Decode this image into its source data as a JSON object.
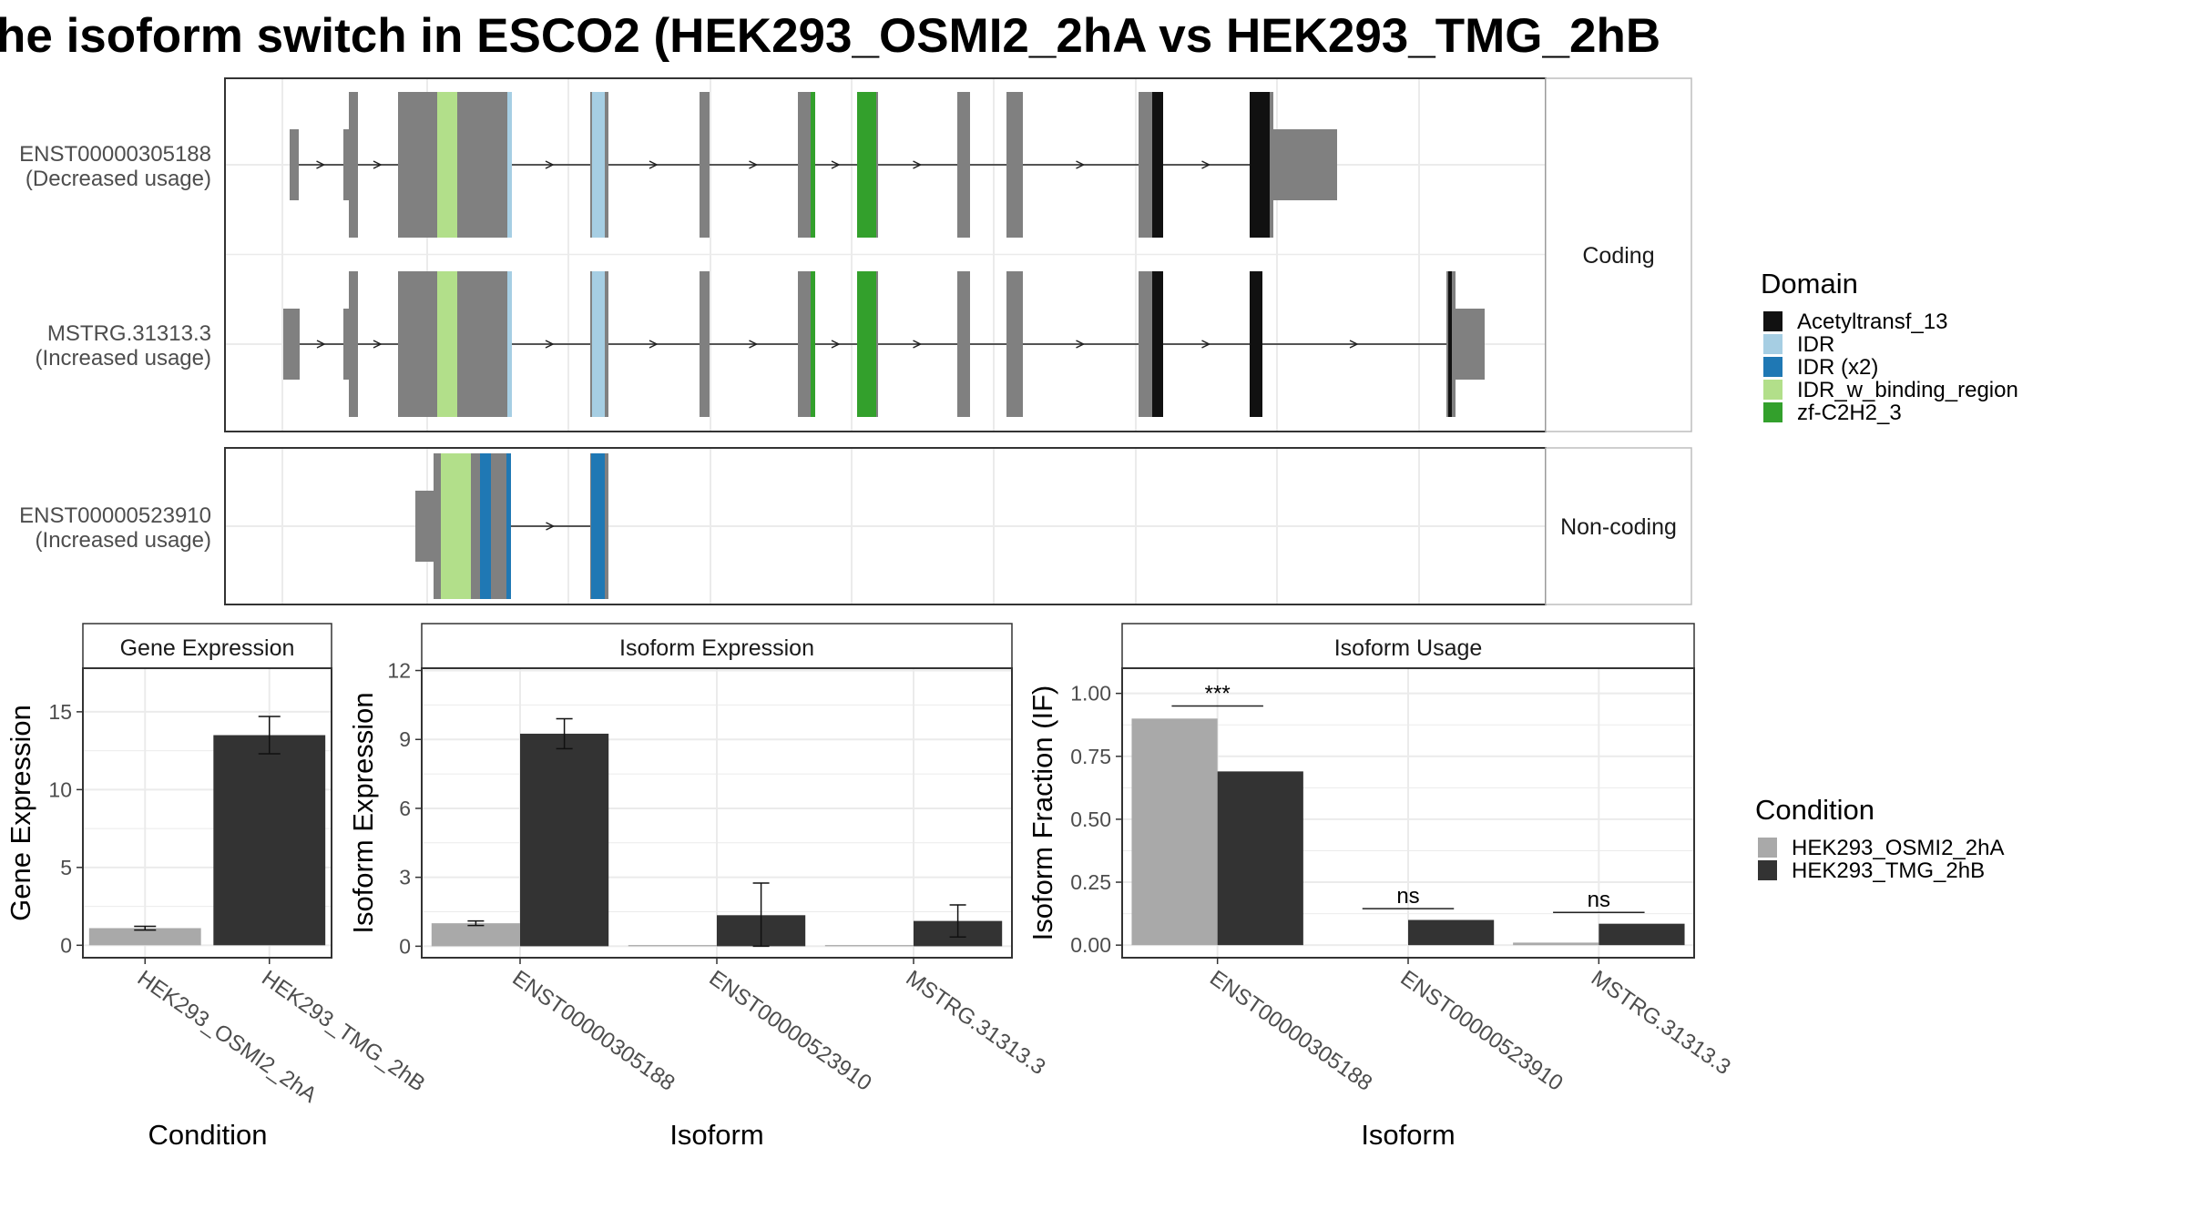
{
  "title": "he isoform switch in ESCO2 (HEK293_OSMI2_2hA vs HEK293_TMG_2hB",
  "colors": {
    "exon": "#808080",
    "panel_border": "#333333",
    "grid": "#ebebeb",
    "cond_a": "#a9a9a9",
    "cond_b": "#333333"
  },
  "structure": {
    "panels": [
      {
        "strip": "Coding",
        "isoforms": [
          {
            "id": "ENST00000305188",
            "usage": "(Decreased usage)"
          },
          {
            "id": "MSTRG.31313.3",
            "usage": "(Increased usage)"
          }
        ]
      },
      {
        "strip": "Non-coding",
        "isoforms": [
          {
            "id": "ENST00000523910",
            "usage": "(Increased usage)"
          }
        ]
      }
    ],
    "domain_legend": {
      "title": "Domain",
      "items": [
        {
          "label": "Acetyltransf_13",
          "color": "#111111"
        },
        {
          "label": "IDR",
          "color": "#a6cee3"
        },
        {
          "label": "IDR (x2)",
          "color": "#1f78b4"
        },
        {
          "label": "IDR_w_binding_region",
          "color": "#b2df8a"
        },
        {
          "label": "zf-C2H2_3",
          "color": "#33a02c"
        }
      ]
    }
  },
  "condition_legend": {
    "title": "Condition",
    "items": [
      {
        "label": "HEK293_OSMI2_2hA",
        "color": "#a9a9a9"
      },
      {
        "label": "HEK293_TMG_2hB",
        "color": "#333333"
      }
    ]
  },
  "chart_data": [
    {
      "type": "bar",
      "title": "Gene Expression",
      "xlabel": "Condition",
      "ylabel": "Gene Expression",
      "categories": [
        "HEK293_OSMI2_2hA",
        "HEK293_TMG_2hB"
      ],
      "values": [
        1.1,
        13.5
      ],
      "error": [
        [
          0.98,
          1.22
        ],
        [
          12.3,
          14.7
        ]
      ],
      "colors": [
        "#a9a9a9",
        "#333333"
      ],
      "ylim": [
        -0.8,
        17.8
      ],
      "yticks": [
        0,
        5,
        10,
        15
      ],
      "grid": true
    },
    {
      "type": "bar",
      "title": "Isoform Expression",
      "xlabel": "Isoform",
      "ylabel": "Isoform Expression",
      "categories": [
        "ENST00000305188",
        "ENST00000523910",
        "MSTRG.31313.3"
      ],
      "series": [
        {
          "name": "HEK293_OSMI2_2hA",
          "values": [
            1.0,
            0.05,
            0.05
          ],
          "error": [
            [
              0.9,
              1.1
            ],
            null,
            null
          ]
        },
        {
          "name": "HEK293_TMG_2hB",
          "values": [
            9.25,
            1.35,
            1.1
          ],
          "error": [
            [
              8.6,
              9.9
            ],
            [
              0.0,
              2.75
            ],
            [
              0.4,
              1.8
            ]
          ]
        }
      ],
      "ylim": [
        -0.5,
        12.1
      ],
      "yticks": [
        0,
        3,
        6,
        9,
        12
      ],
      "grid": true
    },
    {
      "type": "bar",
      "title": "Isoform Usage",
      "xlabel": "Isoform",
      "ylabel": "Isoform Fraction (IF)",
      "categories": [
        "ENST00000305188",
        "ENST00000523910",
        "MSTRG.31313.3"
      ],
      "series": [
        {
          "name": "HEK293_OSMI2_2hA",
          "values": [
            0.9,
            0.0,
            0.01
          ]
        },
        {
          "name": "HEK293_TMG_2hB",
          "values": [
            0.69,
            0.1,
            0.085
          ]
        }
      ],
      "annotations": [
        {
          "category": "ENST00000305188",
          "label": "***",
          "y": 0.95
        },
        {
          "category": "ENST00000523910",
          "label": "ns",
          "y": 0.145
        },
        {
          "category": "MSTRG.31313.3",
          "label": "ns",
          "y": 0.13
        }
      ],
      "ylim": [
        -0.05,
        1.1
      ],
      "yticks": [
        0.0,
        0.25,
        0.5,
        0.75,
        1.0
      ],
      "ytick_labels": [
        "0.00",
        "0.25",
        "0.50",
        "0.75",
        "1.00"
      ],
      "grid": true
    }
  ]
}
